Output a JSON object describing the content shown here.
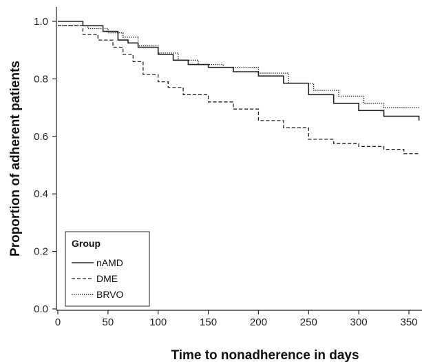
{
  "chart_data": {
    "type": "line",
    "step": true,
    "xlabel": "Time to nonadherence in days",
    "ylabel": "Proportion of adherent patients",
    "xlim": [
      0,
      360
    ],
    "ylim": [
      0,
      1.0
    ],
    "x_ticks": [
      0,
      50,
      100,
      150,
      200,
      250,
      300,
      350
    ],
    "y_ticks": [
      0.0,
      0.2,
      0.4,
      0.6,
      0.8,
      1.0
    ],
    "x_tick_labels": [
      "0",
      "50",
      "100",
      "150",
      "200",
      "250",
      "300",
      "350"
    ],
    "y_tick_labels": [
      "0.0",
      "0.2",
      "0.4",
      "0.6",
      "0.8",
      "1.0"
    ],
    "grid": false,
    "legend": {
      "title": "Group",
      "placement": "bottom-left",
      "entries": [
        "nAMD",
        "DME",
        "BRVO"
      ]
    },
    "series": [
      {
        "name": "nAMD",
        "style": "solid",
        "color": "#222222",
        "x": [
          0,
          25,
          45,
          60,
          70,
          80,
          100,
          115,
          130,
          150,
          175,
          200,
          225,
          250,
          275,
          300,
          325,
          360
        ],
        "y": [
          1.0,
          0.985,
          0.965,
          0.935,
          0.925,
          0.91,
          0.885,
          0.865,
          0.85,
          0.84,
          0.825,
          0.81,
          0.785,
          0.745,
          0.715,
          0.69,
          0.67,
          0.655
        ]
      },
      {
        "name": "DME",
        "style": "dashed",
        "color": "#222222",
        "x": [
          0,
          25,
          40,
          55,
          65,
          75,
          85,
          100,
          110,
          125,
          150,
          175,
          200,
          225,
          250,
          275,
          300,
          325,
          345,
          360
        ],
        "y": [
          0.985,
          0.955,
          0.935,
          0.91,
          0.885,
          0.86,
          0.815,
          0.79,
          0.77,
          0.745,
          0.72,
          0.695,
          0.655,
          0.63,
          0.59,
          0.575,
          0.565,
          0.555,
          0.54,
          0.535
        ]
      },
      {
        "name": "BRVO",
        "style": "dotted",
        "color": "#222222",
        "x": [
          0,
          30,
          50,
          65,
          80,
          100,
          120,
          140,
          165,
          180,
          200,
          230,
          255,
          280,
          305,
          325,
          360
        ],
        "y": [
          0.985,
          0.975,
          0.96,
          0.945,
          0.915,
          0.89,
          0.865,
          0.85,
          0.84,
          0.84,
          0.82,
          0.785,
          0.76,
          0.74,
          0.715,
          0.7,
          0.7
        ]
      }
    ]
  }
}
